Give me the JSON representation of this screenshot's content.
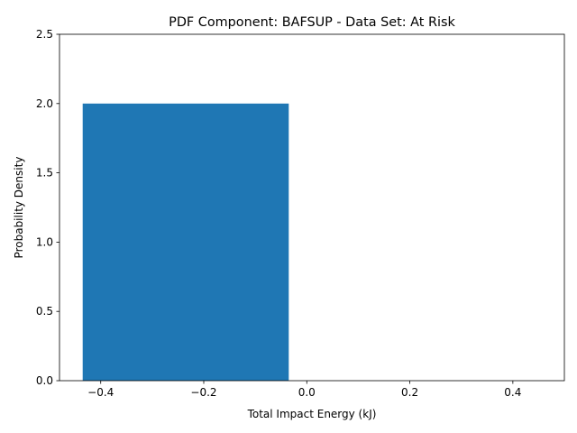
{
  "chart_data": {
    "type": "bar",
    "title": "PDF Component: BAFSUP - Data Set: At Risk",
    "xlabel": "Total Impact Energy (kJ)",
    "ylabel": "Probability Density",
    "xlim": [
      -0.48,
      0.5
    ],
    "ylim": [
      0,
      2.5
    ],
    "xticks": [
      -0.4,
      -0.2,
      0.0,
      0.2,
      0.4
    ],
    "xtick_labels": [
      "−0.4",
      "−0.2",
      "0.0",
      "0.2",
      "0.4"
    ],
    "yticks": [
      0.0,
      0.5,
      1.0,
      1.5,
      2.0,
      2.5
    ],
    "ytick_labels": [
      "0.0",
      "0.5",
      "1.0",
      "1.5",
      "2.0",
      "2.5"
    ],
    "bars": [
      {
        "x0": -0.435,
        "x1": -0.035,
        "value": 2.0
      }
    ],
    "bar_color": "#1f77b4",
    "grid": false,
    "legend": "none"
  }
}
